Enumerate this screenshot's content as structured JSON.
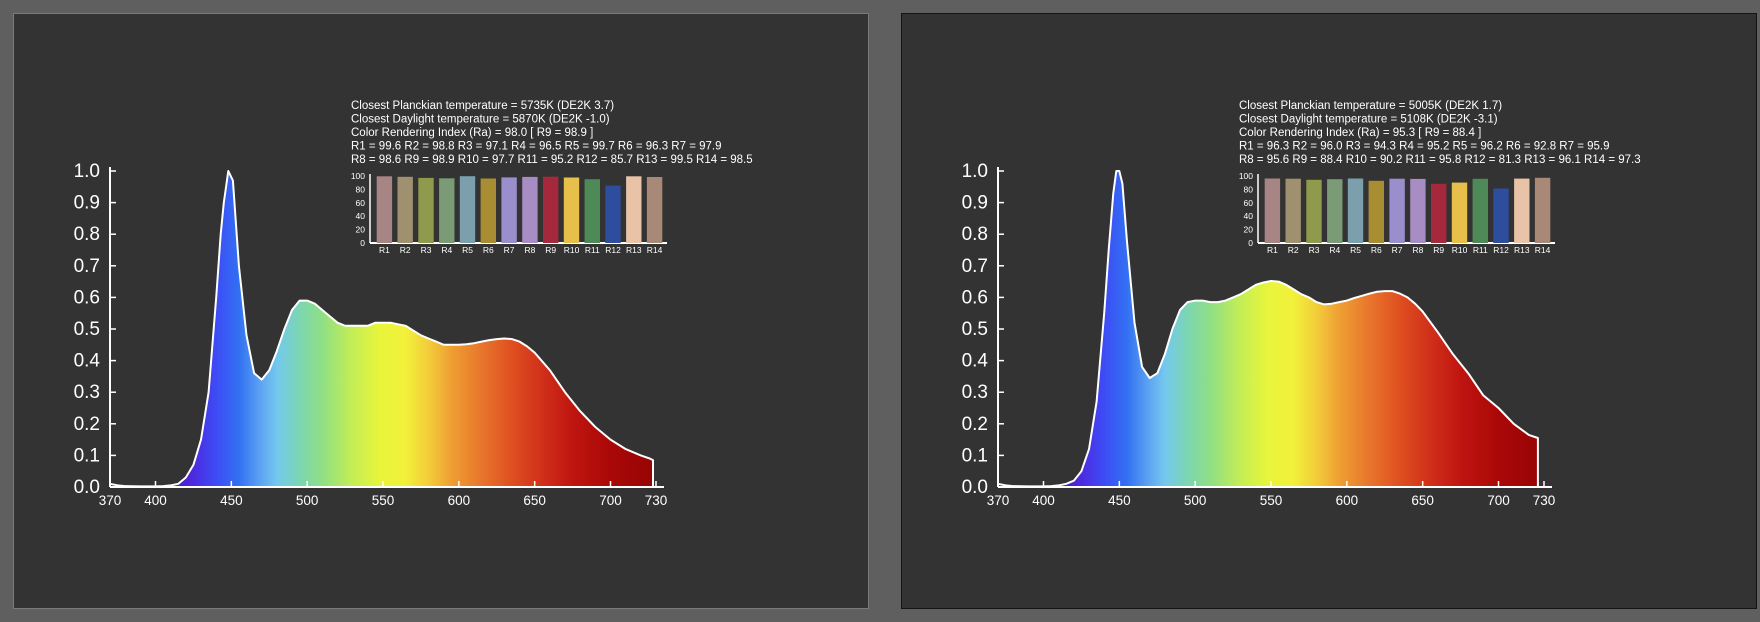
{
  "colors": {
    "page_bg": "#5f5f5f",
    "panel_bg": "#333333",
    "axis": "#ffffff",
    "curve": "#ffffff"
  },
  "panels": [
    {
      "info": [
        "Closest Planckian temperature = 5735K (DE2K 3.7)",
        "Closest Daylight temperature  = 5870K (DE2K -1.0)",
        "Color Rendering Index (Ra) = 98.0 [ R9 = 98.9 ]",
        " R1  = 99.6  R2  = 98.8  R3  = 97.1  R4  = 96.5  R5  = 99.7  R6  = 96.3  R7  = 97.9",
        " R8  = 98.6  R9  = 98.9  R10 = 97.7  R11 = 95.2  R12 = 85.7  R13 = 99.5  R14 = 98.5"
      ]
    },
    {
      "info": [
        "Closest Planckian temperature = 5005K (DE2K 1.7)",
        "Closest Daylight temperature  = 5108K (DE2K -3.1)",
        "Color Rendering Index (Ra) = 95.3 [ R9 = 88.4 ]",
        " R1  = 96.3  R2  = 96.0  R3  = 94.3  R4  = 95.2  R5  = 96.2  R6  = 92.8  R7  = 95.9",
        " R8  = 95.6  R9  = 88.4  R10 = 90.2  R11 = 95.8  R12 = 81.3  R13 = 96.1  R14 = 97.3"
      ]
    }
  ],
  "chart_data": [
    {
      "type": "area",
      "x_ticks": [
        370,
        400,
        450,
        500,
        550,
        600,
        650,
        700,
        730
      ],
      "y_ticks": [
        "0.0",
        "0.1",
        "0.2",
        "0.3",
        "0.4",
        "0.5",
        "0.6",
        "0.7",
        "0.8",
        "0.9",
        "1.0"
      ],
      "xlim": [
        370,
        730
      ],
      "ylim": [
        0,
        1
      ],
      "x": [
        370,
        375,
        380,
        390,
        400,
        405,
        410,
        415,
        420,
        425,
        430,
        435,
        440,
        443,
        445,
        448,
        451,
        455,
        460,
        465,
        470,
        475,
        480,
        485,
        490,
        495,
        500,
        505,
        510,
        515,
        520,
        525,
        530,
        535,
        540,
        545,
        550,
        555,
        560,
        565,
        570,
        575,
        580,
        585,
        590,
        595,
        600,
        605,
        610,
        615,
        620,
        625,
        630,
        635,
        640,
        645,
        650,
        660,
        670,
        680,
        690,
        700,
        710,
        720,
        726,
        728
      ],
      "values": [
        0.01,
        0.005,
        0.003,
        0.002,
        0.002,
        0.003,
        0.005,
        0.01,
        0.03,
        0.07,
        0.15,
        0.3,
        0.6,
        0.8,
        0.9,
        1.0,
        0.97,
        0.7,
        0.48,
        0.36,
        0.34,
        0.37,
        0.43,
        0.5,
        0.56,
        0.59,
        0.59,
        0.58,
        0.56,
        0.54,
        0.52,
        0.51,
        0.51,
        0.51,
        0.51,
        0.52,
        0.52,
        0.52,
        0.515,
        0.51,
        0.495,
        0.48,
        0.47,
        0.46,
        0.45,
        0.45,
        0.45,
        0.452,
        0.455,
        0.46,
        0.465,
        0.468,
        0.47,
        0.468,
        0.46,
        0.445,
        0.425,
        0.37,
        0.3,
        0.24,
        0.19,
        0.15,
        0.12,
        0.1,
        0.09,
        0.085
      ],
      "bars": {
        "categories": [
          "R1",
          "R2",
          "R3",
          "R4",
          "R5",
          "R6",
          "R7",
          "R8",
          "R9",
          "R10",
          "R11",
          "R12",
          "R13",
          "R14"
        ],
        "values": [
          99.6,
          98.8,
          97.1,
          96.5,
          99.7,
          96.3,
          97.9,
          98.6,
          98.9,
          97.7,
          95.2,
          85.7,
          99.5,
          98.5
        ],
        "colors": [
          "#a88585",
          "#9f9070",
          "#8f9a4c",
          "#7b9a76",
          "#7b9fad",
          "#a88d33",
          "#9a8fcc",
          "#a88cc4",
          "#a5283c",
          "#e6c04a",
          "#4e8a57",
          "#2e4d9c",
          "#e8c3a7",
          "#a88877"
        ],
        "y_ticks": [
          "100",
          "80",
          "60",
          "40",
          "20",
          "0"
        ],
        "ylim": [
          0,
          100
        ]
      }
    },
    {
      "type": "area",
      "x_ticks": [
        370,
        400,
        450,
        500,
        550,
        600,
        650,
        700,
        730
      ],
      "y_ticks": [
        "0.0",
        "0.1",
        "0.2",
        "0.3",
        "0.4",
        "0.5",
        "0.6",
        "0.7",
        "0.8",
        "0.9",
        "1.0"
      ],
      "xlim": [
        370,
        730
      ],
      "ylim": [
        0,
        1
      ],
      "x": [
        370,
        375,
        380,
        390,
        400,
        405,
        410,
        415,
        420,
        425,
        430,
        435,
        440,
        443,
        446,
        448,
        450,
        452,
        455,
        460,
        465,
        470,
        475,
        480,
        485,
        490,
        495,
        500,
        505,
        510,
        515,
        520,
        525,
        530,
        535,
        540,
        545,
        550,
        555,
        560,
        565,
        570,
        575,
        580,
        585,
        590,
        595,
        600,
        605,
        610,
        615,
        620,
        625,
        630,
        635,
        640,
        645,
        650,
        660,
        670,
        680,
        690,
        700,
        710,
        720,
        726
      ],
      "values": [
        0.01,
        0.005,
        0.003,
        0.002,
        0.002,
        0.003,
        0.005,
        0.01,
        0.02,
        0.05,
        0.12,
        0.27,
        0.55,
        0.75,
        0.93,
        1.0,
        1.0,
        0.96,
        0.78,
        0.52,
        0.38,
        0.345,
        0.36,
        0.42,
        0.5,
        0.56,
        0.585,
        0.59,
        0.59,
        0.585,
        0.585,
        0.59,
        0.6,
        0.61,
        0.625,
        0.64,
        0.647,
        0.652,
        0.65,
        0.64,
        0.625,
        0.61,
        0.6,
        0.585,
        0.578,
        0.58,
        0.585,
        0.59,
        0.598,
        0.605,
        0.612,
        0.618,
        0.62,
        0.62,
        0.612,
        0.6,
        0.58,
        0.555,
        0.49,
        0.42,
        0.36,
        0.29,
        0.25,
        0.2,
        0.165,
        0.155
      ],
      "bars": {
        "categories": [
          "R1",
          "R2",
          "R3",
          "R4",
          "R5",
          "R6",
          "R7",
          "R8",
          "R9",
          "R10",
          "R11",
          "R12",
          "R13",
          "R14"
        ],
        "values": [
          96.3,
          96.0,
          94.3,
          95.2,
          96.2,
          92.8,
          95.9,
          95.6,
          88.4,
          90.2,
          95.8,
          81.3,
          96.1,
          97.3
        ],
        "colors": [
          "#a88585",
          "#9f9070",
          "#8f9a4c",
          "#7b9a76",
          "#7b9fad",
          "#a88d33",
          "#9a8fcc",
          "#a88cc4",
          "#a5283c",
          "#e6c04a",
          "#4e8a57",
          "#2e4d9c",
          "#e8c3a7",
          "#a88877"
        ],
        "y_ticks": [
          "100",
          "80",
          "60",
          "40",
          "20",
          "0"
        ],
        "ylim": [
          0,
          100
        ]
      }
    }
  ]
}
